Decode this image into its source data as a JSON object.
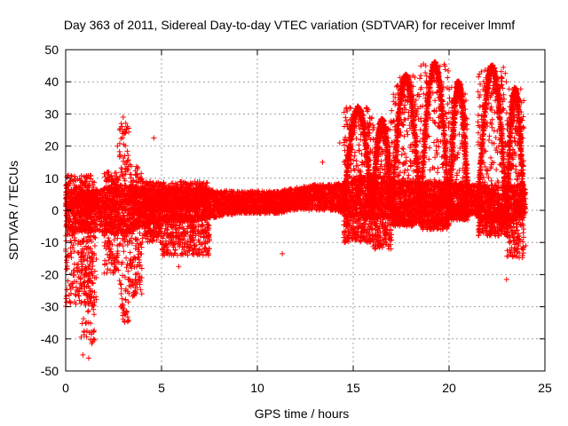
{
  "chart_data": {
    "type": "scatter",
    "title": "Day 363 of 2011, Sidereal Day-to-day VTEC variation (SDTVAR) for receiver lmmf",
    "xlabel": "GPS time / hours",
    "ylabel": "SDTVAR / TECUs",
    "xlim": [
      0,
      25
    ],
    "ylim": [
      -50,
      50
    ],
    "xticks": [
      0,
      5,
      10,
      15,
      20,
      25
    ],
    "yticks": [
      -50,
      -40,
      -30,
      -20,
      -10,
      0,
      10,
      20,
      30,
      40,
      50
    ],
    "xtick_labels": [
      "0",
      "5",
      "10",
      "15",
      "20",
      "25"
    ],
    "ytick_labels": [
      "-50",
      "-40",
      "-30",
      "-20",
      "-10",
      "0",
      "10",
      "20",
      "30",
      "40",
      "50"
    ],
    "grid": true,
    "marker": "+",
    "color": "#ff0000",
    "series": [
      {
        "name": "SDTVAR",
        "band": [
          {
            "x": 0.0,
            "lo": -8,
            "hi": 7
          },
          {
            "x": 1.0,
            "lo": -6,
            "hi": 6
          },
          {
            "x": 2.0,
            "lo": -7,
            "hi": 7
          },
          {
            "x": 3.0,
            "lo": -8,
            "hi": 8
          },
          {
            "x": 4.0,
            "lo": -5,
            "hi": 7
          },
          {
            "x": 5.0,
            "lo": -4,
            "hi": 7
          },
          {
            "x": 6.0,
            "lo": -3,
            "hi": 7
          },
          {
            "x": 7.0,
            "lo": -3,
            "hi": 7
          },
          {
            "x": 8.0,
            "lo": -2,
            "hi": 6
          },
          {
            "x": 9.0,
            "lo": -1,
            "hi": 6
          },
          {
            "x": 10.0,
            "lo": -1,
            "hi": 6
          },
          {
            "x": 11.0,
            "lo": -1,
            "hi": 6
          },
          {
            "x": 12.0,
            "lo": 0,
            "hi": 7
          },
          {
            "x": 13.0,
            "lo": 0,
            "hi": 8
          },
          {
            "x": 14.0,
            "lo": 0,
            "hi": 8
          },
          {
            "x": 15.0,
            "lo": -2,
            "hi": 10
          },
          {
            "x": 16.0,
            "lo": -3,
            "hi": 11
          },
          {
            "x": 17.0,
            "lo": -2,
            "hi": 10
          },
          {
            "x": 18.0,
            "lo": -1,
            "hi": 9
          },
          {
            "x": 19.0,
            "lo": -1,
            "hi": 9
          },
          {
            "x": 20.0,
            "lo": -1,
            "hi": 9
          },
          {
            "x": 21.0,
            "lo": -1,
            "hi": 8
          },
          {
            "x": 22.0,
            "lo": -3,
            "hi": 8
          },
          {
            "x": 23.0,
            "lo": -4,
            "hi": 8
          },
          {
            "x": 24.0,
            "lo": -2,
            "hi": 8
          }
        ],
        "features": [
          {
            "x0": 0.0,
            "x1": 1.5,
            "lo": -30,
            "hi": 11
          },
          {
            "x0": 0.8,
            "x1": 1.2,
            "lo": -40,
            "hi": 5
          },
          {
            "x0": 1.2,
            "x1": 1.6,
            "lo": -42,
            "hi": 4
          },
          {
            "x0": 2.0,
            "x1": 2.8,
            "lo": -20,
            "hi": 12
          },
          {
            "x0": 2.8,
            "x1": 3.3,
            "lo": -35,
            "hi": 28
          },
          {
            "x0": 3.3,
            "x1": 4.0,
            "lo": -27,
            "hi": 15
          },
          {
            "x0": 4.0,
            "x1": 5.0,
            "lo": -10,
            "hi": 9
          },
          {
            "x0": 5.0,
            "x1": 7.5,
            "lo": -14,
            "hi": 9
          },
          {
            "x0": 14.5,
            "x1": 16.0,
            "lo": -10,
            "hi": 32
          },
          {
            "x0": 16.0,
            "x1": 17.0,
            "lo": -12,
            "hi": 28
          },
          {
            "x0": 17.0,
            "x1": 18.5,
            "lo": -5,
            "hi": 42
          },
          {
            "x0": 18.5,
            "x1": 20.0,
            "lo": -6,
            "hi": 46
          },
          {
            "x0": 20.0,
            "x1": 21.0,
            "lo": -3,
            "hi": 40
          },
          {
            "x0": 21.5,
            "x1": 23.0,
            "lo": -8,
            "hi": 45
          },
          {
            "x0": 23.0,
            "x1": 23.9,
            "lo": -15,
            "hi": 38
          }
        ],
        "outliers": [
          {
            "x": 1.2,
            "y": -46
          },
          {
            "x": 0.9,
            "y": -45
          },
          {
            "x": 3.0,
            "y": 29
          },
          {
            "x": 2.9,
            "y": 27
          },
          {
            "x": 3.1,
            "y": 24
          },
          {
            "x": 4.6,
            "y": 22.5
          },
          {
            "x": 2.7,
            "y": 20
          },
          {
            "x": 11.3,
            "y": -13.5
          },
          {
            "x": 14.3,
            "y": 21
          },
          {
            "x": 23.0,
            "y": -21.5
          },
          {
            "x": 23.6,
            "y": -10
          },
          {
            "x": 24.0,
            "y": -11
          },
          {
            "x": 5.9,
            "y": -17.5
          },
          {
            "x": 13.4,
            "y": 15
          }
        ]
      }
    ]
  }
}
